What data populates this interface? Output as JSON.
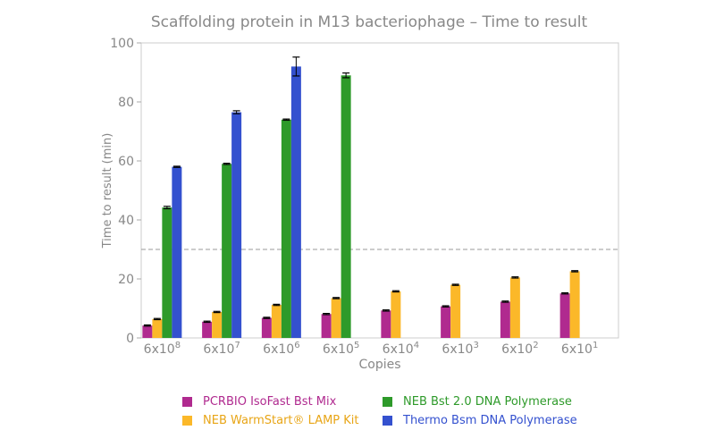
{
  "chart_data": {
    "type": "bar",
    "title": "Scaffolding protein in M13 bacteriophage – Time to result",
    "xlabel": "Copies",
    "ylabel": "Time to result (min)",
    "ylim": [
      0,
      100
    ],
    "yticks": [
      0,
      20,
      40,
      60,
      80,
      100
    ],
    "threshold": 30,
    "categories": [
      {
        "base": "6x10",
        "exp": "8"
      },
      {
        "base": "6x10",
        "exp": "7"
      },
      {
        "base": "6x10",
        "exp": "6"
      },
      {
        "base": "6x10",
        "exp": "5"
      },
      {
        "base": "6x10",
        "exp": "4"
      },
      {
        "base": "6x10",
        "exp": "3"
      },
      {
        "base": "6x10",
        "exp": "2"
      },
      {
        "base": "6x10",
        "exp": "1"
      }
    ],
    "series": [
      {
        "name": "PCRBIO IsoFast Bst Mix",
        "color": "#b02a8f",
        "values": [
          4.2,
          5.5,
          6.8,
          8.1,
          9.3,
          10.7,
          12.3,
          15.1
        ],
        "errors": [
          0.2,
          0.2,
          0.2,
          0.2,
          0.2,
          0.2,
          0.2,
          0.2
        ]
      },
      {
        "name": "NEB WarmStart® LAMP Kit",
        "color": "#fbb829",
        "values": [
          6.4,
          8.8,
          11.2,
          13.5,
          15.8,
          18.0,
          20.5,
          22.6
        ],
        "errors": [
          0.2,
          0.2,
          0.2,
          0.2,
          0.2,
          0.2,
          0.2,
          0.2
        ]
      },
      {
        "name": "NEB Bst 2.0 DNA Polymerase",
        "color": "#2e9a2a",
        "values": [
          44.2,
          59.0,
          74.0,
          89.0,
          null,
          null,
          null,
          null
        ],
        "errors": [
          0.4,
          0.2,
          0.2,
          0.8,
          0,
          0,
          0,
          0
        ]
      },
      {
        "name": "Thermo Bsm DNA Polymerase",
        "color": "#3451cf",
        "values": [
          58.0,
          76.5,
          92.0,
          null,
          null,
          null,
          null,
          null
        ],
        "errors": [
          0.2,
          0.5,
          3.2,
          0,
          0,
          0,
          0,
          0
        ]
      }
    ],
    "legend_placement": "bottom"
  }
}
